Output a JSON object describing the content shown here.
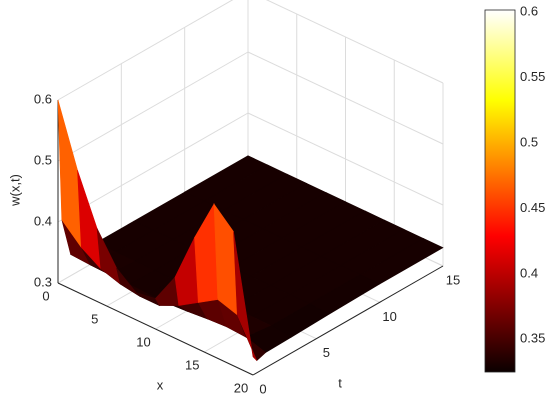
{
  "chart_data": {
    "type": "surface",
    "xlabel": "x",
    "ylabel": "t",
    "zlabel": "w(x,t)",
    "x": [
      0,
      2,
      4,
      6,
      8,
      10,
      12,
      14,
      16,
      18,
      20
    ],
    "t": [
      0,
      0.3,
      1,
      3,
      6,
      10,
      15
    ],
    "z": [
      [
        0.6,
        0.5,
        0.42,
        0.37,
        0.345,
        0.35,
        0.4,
        0.48,
        0.55,
        0.52,
        0.33
      ],
      [
        0.4,
        0.37,
        0.35,
        0.34,
        0.335,
        0.335,
        0.35,
        0.37,
        0.39,
        0.38,
        0.32
      ],
      [
        0.335,
        0.333,
        0.332,
        0.331,
        0.33,
        0.33,
        0.332,
        0.335,
        0.337,
        0.335,
        0.325
      ],
      [
        0.33,
        0.33,
        0.33,
        0.33,
        0.33,
        0.33,
        0.33,
        0.33,
        0.33,
        0.33,
        0.326
      ],
      [
        0.33,
        0.33,
        0.33,
        0.33,
        0.33,
        0.33,
        0.33,
        0.33,
        0.33,
        0.33,
        0.328
      ],
      [
        0.33,
        0.33,
        0.33,
        0.33,
        0.33,
        0.33,
        0.33,
        0.33,
        0.33,
        0.33,
        0.33
      ],
      [
        0.33,
        0.33,
        0.33,
        0.33,
        0.33,
        0.33,
        0.33,
        0.33,
        0.33,
        0.33,
        0.33
      ]
    ],
    "xlim": [
      0,
      20
    ],
    "ylim": [
      0,
      15
    ],
    "zlim": [
      0.3,
      0.6
    ],
    "xticks": [
      0,
      5,
      10,
      15,
      20
    ],
    "yticks": [
      0,
      5,
      10,
      15
    ],
    "zticks": [
      0.3,
      0.4,
      0.5,
      0.6
    ],
    "colormap": "hot",
    "clim": [
      0.325,
      0.6
    ],
    "cticks": [
      0.35,
      0.4,
      0.45,
      0.5,
      0.55,
      0.6
    ],
    "grid": true
  }
}
